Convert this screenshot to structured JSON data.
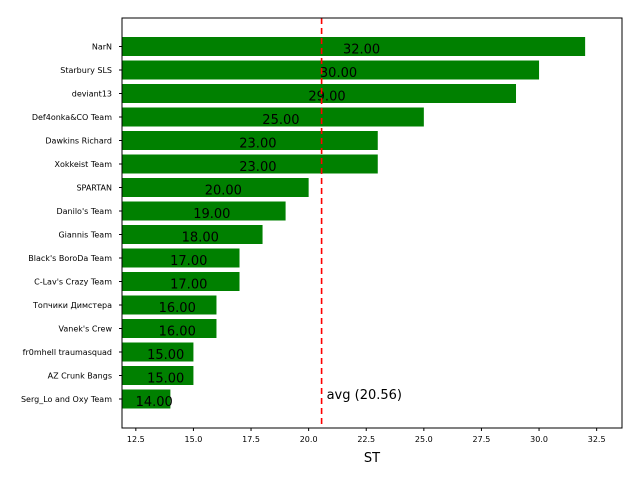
{
  "chart_data": {
    "type": "bar",
    "orientation": "horizontal",
    "categories": [
      "NarN",
      "Starbury SLS",
      "deviant13",
      "Def4onka&CO Team",
      "Dawkins Richard",
      "Xokkeist Team",
      "SPARTAN",
      "Danilo's Team",
      "Giannis Team",
      "Black's BoroDa Team",
      "C-Lav's Crazy Team",
      "Топчики Димстера",
      "Vanek's Crew",
      "fr0mhell traumasquad",
      "AZ Crunk Bangs",
      "Serg_Lo and Oxy Team"
    ],
    "values": [
      32,
      30,
      29,
      25,
      23,
      23,
      20,
      19,
      18,
      17,
      17,
      16,
      16,
      15,
      15,
      14
    ],
    "value_labels": [
      "32.00",
      "30.00",
      "29.00",
      "25.00",
      "23.00",
      "23.00",
      "20.00",
      "19.00",
      "18.00",
      "17.00",
      "17.00",
      "16.00",
      "16.00",
      "15.00",
      "15.00",
      "14.00"
    ],
    "bar_color": "#008000",
    "xlabel": "ST",
    "xlim": [
      11.9,
      33.6
    ],
    "xticks": [
      12.5,
      15.0,
      17.5,
      20.0,
      22.5,
      25.0,
      27.5,
      30.0,
      32.5
    ],
    "xtick_labels": [
      "12.5",
      "15.0",
      "17.5",
      "20.0",
      "22.5",
      "25.0",
      "27.5",
      "30.0",
      "32.5"
    ],
    "average": {
      "value": 20.5625,
      "label": "avg (20.56)",
      "color": "#ff0000",
      "style": "dashed"
    },
    "grid": false
  }
}
